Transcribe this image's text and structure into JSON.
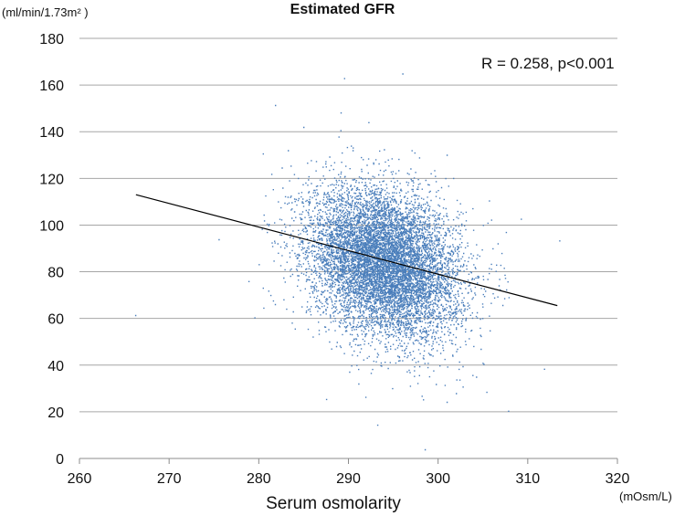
{
  "chart_data": {
    "type": "scatter",
    "title": "Estimated   GFR",
    "xlabel": "Serum osmolarity",
    "x_unit": "(mOsm/L)",
    "y_unit": "(ml/min/1.73m² )",
    "xlim": [
      260,
      320
    ],
    "ylim": [
      0,
      180
    ],
    "x_ticks": [
      260,
      270,
      280,
      290,
      300,
      310,
      320
    ],
    "y_ticks": [
      0,
      20,
      40,
      60,
      80,
      100,
      120,
      140,
      160,
      180
    ],
    "grid": "horizontal",
    "annotation": "R = 0.258, p<0.001",
    "regression_line": {
      "x": [
        266.3,
        313.3
      ],
      "y": [
        113,
        65.5
      ]
    },
    "point_cloud": {
      "n_points": 9000,
      "center_x": 294,
      "center_y": 84,
      "sd_x": 4.2,
      "sd_y": 16,
      "correlation": -0.258
    },
    "outliers": [
      {
        "x": 266.2,
        "y": 61.5
      },
      {
        "x": 279.5,
        "y": 60.5
      },
      {
        "x": 281.8,
        "y": 151.5
      },
      {
        "x": 298.5,
        "y": 4
      },
      {
        "x": 293.2,
        "y": 14.5
      },
      {
        "x": 307.8,
        "y": 20.5
      },
      {
        "x": 311.8,
        "y": 38.5
      },
      {
        "x": 313.5,
        "y": 93.5
      },
      {
        "x": 275.5,
        "y": 94
      },
      {
        "x": 296,
        "y": 165
      },
      {
        "x": 289.5,
        "y": 163
      }
    ],
    "colors": {
      "points": "#4a7ebb",
      "line": "#000000",
      "grid": "#a6a6a6"
    }
  }
}
